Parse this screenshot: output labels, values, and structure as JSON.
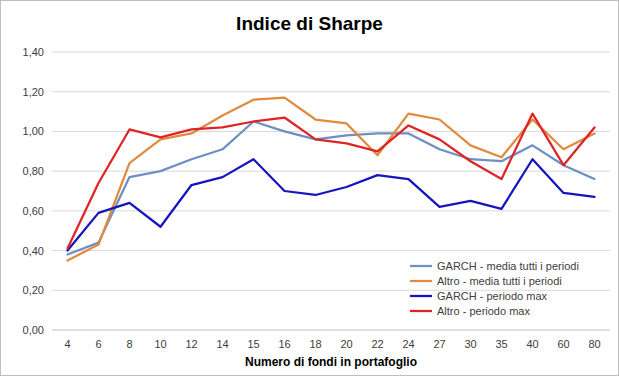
{
  "chart_data": {
    "type": "line",
    "title": "Indice di Sharpe",
    "x_label": "Numero di fondi in portafoglio",
    "categories": [
      "4",
      "6",
      "8",
      "10",
      "12",
      "14",
      "15",
      "16",
      "18",
      "20",
      "22",
      "24",
      "27",
      "30",
      "35",
      "40",
      "60",
      "80"
    ],
    "series": [
      {
        "name": "GARCH - media tutti i periodi",
        "color": "#6d8fc4",
        "values": [
          0.38,
          0.44,
          0.77,
          0.8,
          0.86,
          0.91,
          1.05,
          1.0,
          0.96,
          0.98,
          0.99,
          0.99,
          0.91,
          0.86,
          0.85,
          0.93,
          0.83,
          0.76
        ]
      },
      {
        "name": "Altro - media tutti i periodi",
        "color": "#e08a3c",
        "values": [
          0.35,
          0.43,
          0.84,
          0.96,
          0.99,
          1.08,
          1.16,
          1.17,
          1.06,
          1.04,
          0.88,
          1.09,
          1.06,
          0.93,
          0.87,
          1.06,
          0.91,
          0.99
        ]
      },
      {
        "name": "GARCH - periodo max",
        "color": "#1515c0",
        "values": [
          0.4,
          0.59,
          0.64,
          0.52,
          0.73,
          0.77,
          0.86,
          0.7,
          0.68,
          0.72,
          0.78,
          0.76,
          0.62,
          0.65,
          0.61,
          0.86,
          0.69,
          0.67
        ]
      },
      {
        "name": "Altro - periodo max",
        "color": "#e02424",
        "values": [
          0.41,
          0.74,
          1.01,
          0.97,
          1.01,
          1.02,
          1.05,
          1.07,
          0.96,
          0.94,
          0.9,
          1.03,
          0.96,
          0.85,
          0.76,
          1.09,
          0.83,
          1.02
        ]
      }
    ],
    "ylim": [
      0,
      1.4
    ],
    "yticks": [
      {
        "value": 0,
        "label": "0,00"
      },
      {
        "value": 0.2,
        "label": "0,20"
      },
      {
        "value": 0.4,
        "label": "0,40"
      },
      {
        "value": 0.6,
        "label": "0,60"
      },
      {
        "value": 0.8,
        "label": "0,80"
      },
      {
        "value": 1,
        "label": "1,00"
      },
      {
        "value": 1.2,
        "label": "1,20"
      },
      {
        "value": 1.4,
        "label": "1,40"
      }
    ],
    "grid": true,
    "legend": "lower right"
  }
}
